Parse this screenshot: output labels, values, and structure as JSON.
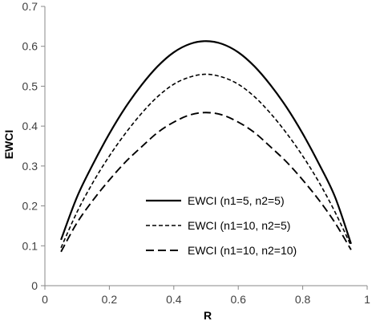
{
  "chart_data": {
    "type": "line",
    "xlabel": "R",
    "ylabel": "EWCI",
    "xlim": [
      0,
      1
    ],
    "ylim": [
      0,
      0.7
    ],
    "x_ticks": [
      "0",
      "0.2",
      "0.4",
      "0.6",
      "0.8",
      "1"
    ],
    "y_ticks": [
      "0",
      "0.1",
      "0.2",
      "0.3",
      "0.4",
      "0.5",
      "0.6",
      "0.7"
    ],
    "grid": false,
    "legend_position": "inside-bottom-center",
    "x": [
      0.05,
      0.1,
      0.15,
      0.2,
      0.25,
      0.3,
      0.35,
      0.4,
      0.45,
      0.5,
      0.55,
      0.6,
      0.65,
      0.7,
      0.75,
      0.8,
      0.85,
      0.9,
      0.95
    ],
    "series": [
      {
        "name": "EWCI (n1=5, n2=5)",
        "dash": "solid",
        "values": [
          0.115,
          0.223,
          0.306,
          0.381,
          0.447,
          0.503,
          0.55,
          0.585,
          0.606,
          0.613,
          0.606,
          0.585,
          0.55,
          0.503,
          0.447,
          0.381,
          0.306,
          0.223,
          0.105
        ]
      },
      {
        "name": "EWCI (n1=10, n2=5)",
        "dash": "short-dash",
        "values": [
          0.095,
          0.185,
          0.26,
          0.325,
          0.382,
          0.432,
          0.474,
          0.505,
          0.523,
          0.53,
          0.523,
          0.505,
          0.474,
          0.432,
          0.382,
          0.325,
          0.26,
          0.185,
          0.1
        ]
      },
      {
        "name": "EWCI (n1=10, n2=10)",
        "dash": "long-dash",
        "values": [
          0.085,
          0.158,
          0.215,
          0.265,
          0.31,
          0.348,
          0.384,
          0.41,
          0.428,
          0.434,
          0.428,
          0.41,
          0.384,
          0.348,
          0.31,
          0.265,
          0.215,
          0.158,
          0.09
        ]
      }
    ]
  }
}
